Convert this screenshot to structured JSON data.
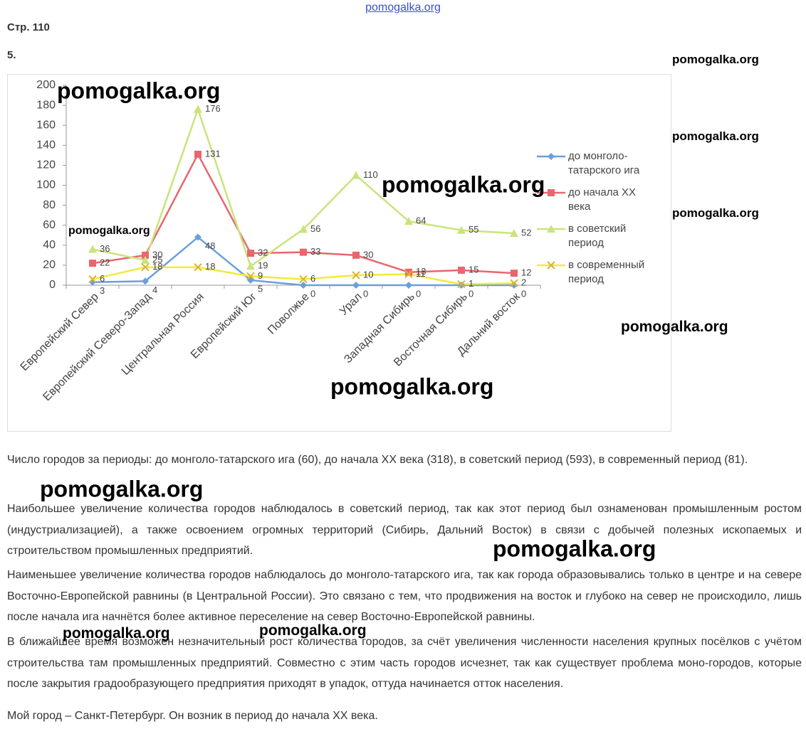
{
  "site_link": "pomogalka.org",
  "header": {
    "page": "Стр. 110",
    "task": "5."
  },
  "chart_data": {
    "type": "line",
    "categories": [
      "Европейский Север",
      "Европейский Северо-Запад",
      "Центральная Россия",
      "Европейский Юг",
      "Поволжье",
      "Урал",
      "Западная Сибирь",
      "Восточная Сибирь",
      "Дальний восток"
    ],
    "series": [
      {
        "name": "до монголо-татарского ига",
        "color": "#6b9fdc",
        "marker": "diamond",
        "values": [
          3,
          4,
          48,
          5,
          0,
          0,
          0,
          0,
          0
        ]
      },
      {
        "name": "до начала XX века",
        "color": "#e8666e",
        "marker": "square",
        "values": [
          22,
          30,
          131,
          32,
          33,
          30,
          13,
          15,
          12
        ]
      },
      {
        "name": "в советский период",
        "color": "#c9e47c",
        "marker": "triangle",
        "values": [
          36,
          25,
          176,
          19,
          56,
          110,
          64,
          55,
          52
        ]
      },
      {
        "name": "в современный период",
        "color": "#f2ea3a",
        "marker": "x",
        "values": [
          6,
          18,
          18,
          9,
          6,
          10,
          11,
          1,
          2
        ]
      }
    ],
    "ylim": [
      0,
      200
    ],
    "yticks": [
      0,
      20,
      40,
      60,
      80,
      100,
      120,
      140,
      160,
      180,
      200
    ],
    "grid": false,
    "legend": "right"
  },
  "paragraphs": [
    "Число городов за периоды: до монголо-татарского ига (60), до начала XX века (318), в советский период (593), в современный период (81).",
    "Наибольшее увеличение количества городов наблюдалось в советский период, так как этот период был ознаменован промышленным ростом (индустриализацией), а также освоением огромных территорий (Сибирь, Дальний Восток) в связи с добычей полезных ископаемых и строительством промышленных предприятий.",
    "Наименьшее увеличение количества городов наблюдалось до монголо-татарского ига, так как города образовывались только в центре и на севере Восточно-Европейской равнины (в Центральной России). Это связано с тем, что продвижения на восток и глубоко на север не происходило, лишь после начала ига начнётся более активное переселение на север Восточно-Европейской равнины.",
    "В ближайшее время возможен незначительный рост количества городов, за счёт увеличения численности населения крупных посёлков с учётом строительства там промышленных предприятий. Совместно с этим часть городов исчезнет, так как существует проблема моно-городов, которые после закрытия градообразующего предприятия приходят в упадок, оттуда начинается отток населения.",
    "Мой город – Санкт-Петербург. Он возник в период  до начала XX века."
  ],
  "watermarks": [
    "pomogalka.org",
    "pomogalka.org",
    "pomogalka.org",
    "pomogalka.org",
    "pomogalka.org",
    "pomogalka.org",
    "pomogalka.org",
    "pomogalka.org",
    "pomogalka.org",
    "pomogalka.org",
    "pomogalka.org",
    "pomogalka.org"
  ]
}
